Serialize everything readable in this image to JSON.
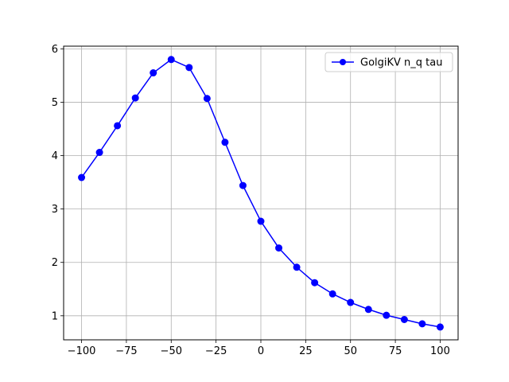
{
  "chart_data": {
    "type": "line",
    "title": "",
    "xlabel": "",
    "ylabel": "",
    "xlim": [
      -110,
      110
    ],
    "ylim": [
      0.55,
      6.05
    ],
    "xticks": [
      -100,
      -75,
      -50,
      -25,
      0,
      25,
      50,
      75,
      100
    ],
    "xtick_labels": [
      "−100",
      "−75",
      "−50",
      "−25",
      "0",
      "25",
      "50",
      "75",
      "100"
    ],
    "yticks": [
      1,
      2,
      3,
      4,
      5,
      6
    ],
    "ytick_labels": [
      "1",
      "2",
      "3",
      "4",
      "5",
      "6"
    ],
    "grid": true,
    "legend_position": "top-right",
    "series": [
      {
        "name": "GolgiKV n_q tau",
        "color": "#0000ff",
        "marker": "circle",
        "x": [
          -100,
          -90,
          -80,
          -70,
          -60,
          -50,
          -40,
          -30,
          -20,
          -10,
          0,
          10,
          20,
          30,
          40,
          50,
          60,
          70,
          80,
          90,
          100
        ],
        "y": [
          3.59,
          4.06,
          4.56,
          5.08,
          5.55,
          5.8,
          5.65,
          5.07,
          4.25,
          3.44,
          2.77,
          2.27,
          1.91,
          1.62,
          1.41,
          1.25,
          1.12,
          1.01,
          0.93,
          0.85,
          0.79
        ]
      }
    ]
  }
}
